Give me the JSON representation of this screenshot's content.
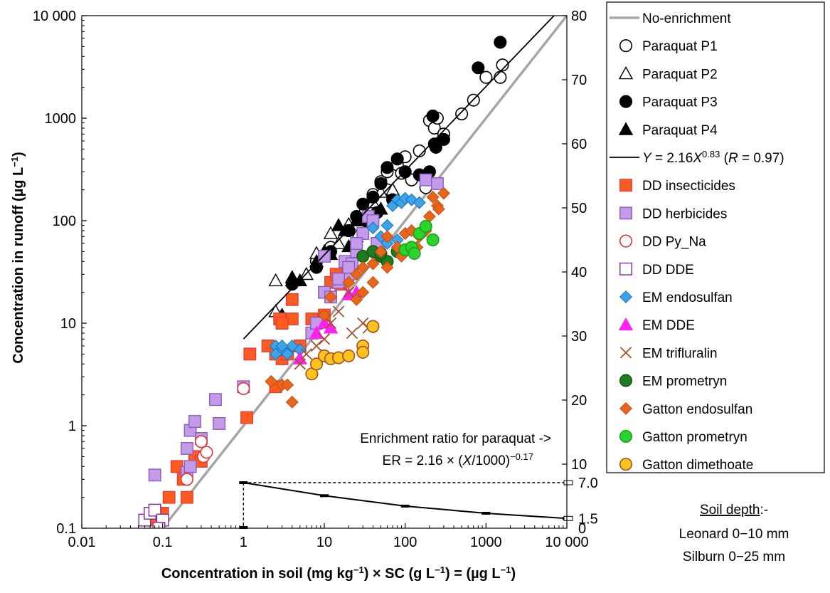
{
  "chart_data": {
    "type": "scatter",
    "x_axis": {
      "label_parts": [
        "Concentration in soil (mg kg",
        "−1",
        ") × SC (g L",
        "−1",
        ") = (µg L",
        "−1",
        ")"
      ],
      "scale": "log",
      "range": [
        0.01,
        10000
      ],
      "ticks": [
        {
          "value": 0.01,
          "label": "0.01"
        },
        {
          "value": 0.1,
          "label": "0.1"
        },
        {
          "value": 1,
          "label": "1"
        },
        {
          "value": 10,
          "label": "10"
        },
        {
          "value": 100,
          "label": "100"
        },
        {
          "value": 1000,
          "label": "1000"
        },
        {
          "value": 10000,
          "label": "10 000"
        }
      ]
    },
    "y_axis": {
      "label_parts": [
        "Concentration in runoff (µg L",
        "−1",
        ")"
      ],
      "scale": "log",
      "range": [
        0.1,
        10000
      ],
      "ticks": [
        {
          "value": 0.1,
          "label": "0.1"
        },
        {
          "value": 1,
          "label": "1"
        },
        {
          "value": 10,
          "label": "10"
        },
        {
          "value": 100,
          "label": "100"
        },
        {
          "value": 1000,
          "label": "1000"
        },
        {
          "value": 10000,
          "label": "10 000"
        }
      ]
    },
    "y2_axis": {
      "scale": "linear",
      "range": [
        0,
        80
      ],
      "ticks": [
        {
          "value": 10,
          "label": "10"
        },
        {
          "value": 20,
          "label": "20"
        },
        {
          "value": 30,
          "label": "30"
        },
        {
          "value": 40,
          "label": "40"
        },
        {
          "value": 50,
          "label": "50"
        },
        {
          "value": 60,
          "label": "60"
        },
        {
          "value": 70,
          "label": "70"
        },
        {
          "value": 80,
          "label": "80"
        }
      ],
      "er_ticks": [
        {
          "value": 0,
          "label": "0"
        },
        {
          "value": 1.5,
          "label": "1.5"
        },
        {
          "value": 7.0,
          "label": "7.0"
        }
      ]
    },
    "lines": {
      "no_enrichment": {
        "x": [
          0.1,
          10000
        ],
        "y": [
          0.1,
          10000
        ],
        "color": "#a6a6a6"
      },
      "paraquat_fit": {
        "x": [
          1,
          10000
        ],
        "y": [
          7,
          13500
        ],
        "color": "#000000"
      }
    },
    "er_curve": {
      "x": [
        1,
        10,
        100,
        1000,
        10000
      ],
      "er": [
        7.0,
        5.0,
        3.4,
        2.3,
        1.5
      ]
    },
    "annotation": {
      "line1": "Enrichment ratio for paraquat ->",
      "line2_prefix": "ER = 2.16 × (",
      "line2_italic": "X",
      "line2_mid": "/1000)",
      "line2_sup": "−0.17"
    },
    "soil_depth": {
      "title": "Soil depth",
      "suffix": ":-",
      "line1": "Leonard 0−10 mm",
      "line2": "Silburn 0−25 mm"
    },
    "legend": [
      {
        "key": "ne",
        "label": "No-enrichment",
        "kind": "line",
        "color": "#a6a6a6"
      },
      {
        "key": "p1",
        "label": "Paraquat P1",
        "shape": "circle",
        "fill": "#ffffff",
        "stroke": "#000000"
      },
      {
        "key": "p2",
        "label": "Paraquat P2",
        "shape": "triangle",
        "fill": "#ffffff",
        "stroke": "#000000"
      },
      {
        "key": "p3",
        "label": "Paraquat P3",
        "shape": "circle",
        "fill": "#000000",
        "stroke": "#000000"
      },
      {
        "key": "p4",
        "label": "Paraquat P4",
        "shape": "triangle",
        "fill": "#000000",
        "stroke": "#000000"
      },
      {
        "key": "fit",
        "kind": "fitline",
        "color": "#000000",
        "label_parts": [
          "Y",
          " = 2.16",
          "X",
          "0.83",
          " (",
          "R",
          " = 0.97)"
        ]
      },
      {
        "key": "ddi",
        "label": "DD insecticides",
        "shape": "square",
        "fill": "#ff5a1f",
        "stroke": "#e0403a"
      },
      {
        "key": "ddh",
        "label": "DD herbicides",
        "shape": "square",
        "fill": "#c39be8",
        "stroke": "#8a5cc2"
      },
      {
        "key": "ddp",
        "label": "DD Py_Na",
        "shape": "circle",
        "fill": "#ffffff",
        "stroke": "#e8332c"
      },
      {
        "key": "ddd",
        "label": "DD DDE",
        "shape": "square",
        "fill": "#ffffff",
        "stroke": "#7a2a9a"
      },
      {
        "key": "eme",
        "label": "EM endosulfan",
        "shape": "diamond",
        "fill": "#3aa3ea",
        "stroke": "#1e6fb4"
      },
      {
        "key": "emd",
        "label": "EM DDE",
        "shape": "triangle",
        "fill": "#ff22ee",
        "stroke": "#ff22ee"
      },
      {
        "key": "emt",
        "label": "EM trifluralin",
        "shape": "cross",
        "fill": "none",
        "stroke": "#a0522d"
      },
      {
        "key": "emp",
        "label": "EM prometryn",
        "shape": "circle",
        "fill": "#1e7b1e",
        "stroke": "#145c14"
      },
      {
        "key": "gen",
        "label": "Gatton endosulfan",
        "shape": "diamond",
        "fill": "#e8651a",
        "stroke": "#c24e10"
      },
      {
        "key": "gpr",
        "label": "Gatton prometryn",
        "shape": "circle",
        "fill": "#2bd42b",
        "stroke": "#1aa01a"
      },
      {
        "key": "gdi",
        "label": "Gatton dimethoate",
        "shape": "circle",
        "fill": "#ffc21a",
        "stroke": "#a0522d"
      }
    ],
    "series": [
      {
        "key": "p1",
        "points": [
          [
            8,
            40
          ],
          [
            12,
            55
          ],
          [
            20,
            80
          ],
          [
            30,
            110
          ],
          [
            40,
            180
          ],
          [
            50,
            240
          ],
          [
            60,
            300
          ],
          [
            80,
            350
          ],
          [
            100,
            420
          ],
          [
            120,
            250
          ],
          [
            150,
            480
          ],
          [
            200,
            950
          ],
          [
            230,
            800
          ],
          [
            300,
            700
          ],
          [
            500,
            1100
          ],
          [
            700,
            1500
          ],
          [
            1000,
            2500
          ],
          [
            1500,
            2500
          ],
          [
            1600,
            3300
          ],
          [
            60,
            200
          ],
          [
            90,
            290
          ],
          [
            180,
            210
          ],
          [
            250,
            1000
          ]
        ]
      },
      {
        "key": "p2",
        "points": [
          [
            2.5,
            26
          ],
          [
            2.5,
            13
          ],
          [
            4,
            26
          ],
          [
            6,
            30
          ],
          [
            8,
            48
          ],
          [
            12,
            75
          ],
          [
            20,
            92
          ],
          [
            30,
            125
          ],
          [
            40,
            150
          ],
          [
            50,
            190
          ],
          [
            25,
            70
          ],
          [
            70,
            200
          ],
          [
            15,
            60
          ]
        ]
      },
      {
        "key": "p3",
        "points": [
          [
            4,
            24
          ],
          [
            8,
            35
          ],
          [
            12,
            50
          ],
          [
            20,
            80
          ],
          [
            25,
            110
          ],
          [
            30,
            145
          ],
          [
            40,
            170
          ],
          [
            50,
            230
          ],
          [
            60,
            330
          ],
          [
            80,
            400
          ],
          [
            100,
            300
          ],
          [
            150,
            280
          ],
          [
            200,
            300
          ],
          [
            220,
            1050
          ],
          [
            230,
            560
          ],
          [
            240,
            520
          ],
          [
            300,
            620
          ],
          [
            800,
            3100
          ],
          [
            1500,
            5500
          ],
          [
            45,
            120
          ],
          [
            35,
            95
          ],
          [
            70,
            160
          ]
        ]
      },
      {
        "key": "p4",
        "points": [
          [
            3,
            12
          ],
          [
            4,
            28
          ],
          [
            5,
            26
          ],
          [
            8,
            40
          ],
          [
            10,
            50
          ],
          [
            12,
            47
          ],
          [
            18,
            80
          ],
          [
            20,
            56
          ],
          [
            25,
            100
          ],
          [
            30,
            100
          ],
          [
            50,
            130
          ],
          [
            15,
            90
          ]
        ]
      },
      {
        "key": "ddi",
        "points": [
          [
            0.07,
            0.12
          ],
          [
            0.1,
            0.14
          ],
          [
            0.12,
            0.2
          ],
          [
            0.15,
            0.4
          ],
          [
            0.18,
            0.3
          ],
          [
            0.2,
            0.2
          ],
          [
            0.25,
            0.5
          ],
          [
            0.3,
            0.45
          ],
          [
            1.1,
            1.2
          ],
          [
            1.2,
            5
          ],
          [
            2,
            6
          ],
          [
            2.5,
            5
          ],
          [
            2.8,
            11
          ],
          [
            3,
            4.5
          ],
          [
            3.5,
            5
          ],
          [
            4,
            11
          ],
          [
            5,
            6
          ],
          [
            7,
            11
          ],
          [
            8,
            10
          ],
          [
            10,
            12
          ],
          [
            12,
            25
          ],
          [
            14,
            30
          ],
          [
            16,
            24
          ],
          [
            3,
            10
          ],
          [
            2.5,
            2.4
          ],
          [
            4,
            17
          ]
        ]
      },
      {
        "key": "ddh",
        "points": [
          [
            0.08,
            0.33
          ],
          [
            0.2,
            0.6
          ],
          [
            0.22,
            0.9
          ],
          [
            0.25,
            1.1
          ],
          [
            0.3,
            0.75
          ],
          [
            0.45,
            1.8
          ],
          [
            0.5,
            1.05
          ],
          [
            0.2,
            0.35
          ],
          [
            0.22,
            0.4
          ],
          [
            7,
            8
          ],
          [
            8,
            10
          ],
          [
            10,
            20
          ],
          [
            12,
            18
          ],
          [
            15,
            25
          ],
          [
            18,
            40
          ],
          [
            20,
            30
          ],
          [
            22,
            38
          ],
          [
            25,
            50
          ],
          [
            30,
            75
          ],
          [
            35,
            110
          ],
          [
            40,
            100
          ],
          [
            45,
            60
          ],
          [
            25,
            60
          ],
          [
            180,
            250
          ],
          [
            250,
            230
          ],
          [
            10,
            45
          ],
          [
            20,
            35
          ],
          [
            15,
            27
          ],
          [
            1,
            2.4
          ]
        ]
      },
      {
        "key": "ddp",
        "points": [
          [
            1,
            2.3
          ],
          [
            0.3,
            0.7
          ],
          [
            0.32,
            0.5
          ],
          [
            0.35,
            0.55
          ],
          [
            0.2,
            0.3
          ]
        ]
      },
      {
        "key": "ddd",
        "points": [
          [
            0.06,
            0.12
          ],
          [
            0.07,
            0.14
          ],
          [
            0.08,
            0.15
          ],
          [
            0.1,
            0.12
          ],
          [
            0.09,
            0.1
          ]
        ]
      },
      {
        "key": "eme",
        "points": [
          [
            2.5,
            6
          ],
          [
            3,
            5.5
          ],
          [
            3.5,
            5
          ],
          [
            4,
            6
          ],
          [
            5,
            5.5
          ],
          [
            40,
            85
          ],
          [
            50,
            70
          ],
          [
            60,
            90
          ],
          [
            70,
            140
          ],
          [
            80,
            160
          ],
          [
            90,
            150
          ],
          [
            100,
            165
          ],
          [
            120,
            160
          ],
          [
            150,
            150
          ],
          [
            80,
            65
          ],
          [
            100,
            75
          ],
          [
            60,
            60
          ],
          [
            120,
            55
          ],
          [
            3,
            6
          ],
          [
            2.5,
            5
          ]
        ]
      },
      {
        "key": "emd",
        "points": [
          [
            5,
            4.5
          ],
          [
            8,
            8
          ],
          [
            10,
            10
          ],
          [
            12,
            9
          ],
          [
            20,
            19
          ],
          [
            25,
            20
          ]
        ]
      },
      {
        "key": "emt",
        "points": [
          [
            6,
            5
          ],
          [
            8,
            6
          ],
          [
            10,
            7
          ],
          [
            12,
            10
          ],
          [
            15,
            13
          ],
          [
            20,
            20
          ],
          [
            22,
            8
          ],
          [
            30,
            10
          ],
          [
            35,
            9
          ],
          [
            5,
            4
          ]
        ]
      },
      {
        "key": "emp",
        "points": [
          [
            30,
            45
          ],
          [
            40,
            50
          ],
          [
            50,
            45
          ],
          [
            60,
            40
          ],
          [
            80,
            50
          ],
          [
            50,
            48
          ]
        ]
      },
      {
        "key": "gen",
        "points": [
          [
            2.2,
            2.7
          ],
          [
            3,
            2.5
          ],
          [
            3.5,
            2.5
          ],
          [
            4,
            1.7
          ],
          [
            10,
            12
          ],
          [
            20,
            25
          ],
          [
            25,
            30
          ],
          [
            30,
            35
          ],
          [
            40,
            38
          ],
          [
            50,
            50
          ],
          [
            60,
            70
          ],
          [
            80,
            55
          ],
          [
            100,
            75
          ],
          [
            120,
            80
          ],
          [
            150,
            70
          ],
          [
            200,
            110
          ],
          [
            250,
            140
          ],
          [
            300,
            185
          ],
          [
            180,
            80
          ],
          [
            220,
            170
          ],
          [
            260,
            130
          ],
          [
            12,
            18
          ],
          [
            30,
            20
          ],
          [
            40,
            25
          ],
          [
            60,
            35
          ],
          [
            90,
            45
          ],
          [
            140,
            55
          ],
          [
            25,
            17
          ]
        ]
      },
      {
        "key": "gpr",
        "points": [
          [
            100,
            52
          ],
          [
            120,
            55
          ],
          [
            130,
            48
          ],
          [
            150,
            75
          ],
          [
            180,
            88
          ],
          [
            220,
            65
          ]
        ]
      },
      {
        "key": "gdi",
        "points": [
          [
            7,
            3.2
          ],
          [
            8,
            4
          ],
          [
            10,
            4.8
          ],
          [
            12,
            4.5
          ],
          [
            15,
            4.6
          ],
          [
            20,
            4.8
          ],
          [
            30,
            6
          ],
          [
            30,
            5.2
          ],
          [
            40,
            9.3
          ]
        ]
      }
    ]
  }
}
